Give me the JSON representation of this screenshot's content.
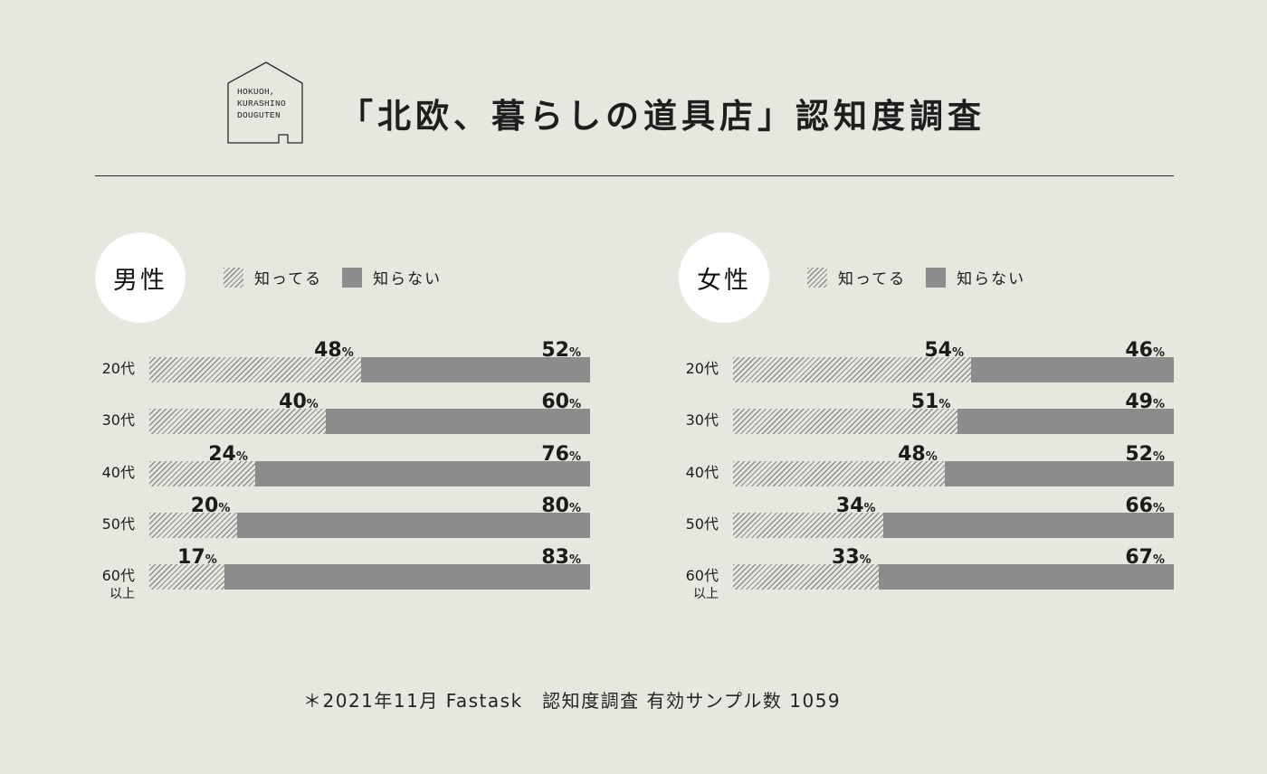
{
  "logo": {
    "text": "HOKUOH,\nKURASHINO\nDOUGUTEN"
  },
  "title": "「北欧、暮らしの道具店」認知度調査",
  "legend": {
    "known": "知ってる",
    "unknown": "知らない"
  },
  "percent_sign": "%",
  "footnote": "＊2021年11月 Fastask　認知度調査 有効サンプル数 1059",
  "colors": {
    "background": "#e7e6df",
    "unknown_bar": "#8c8c8c",
    "known_hatch": "#8f8f8f",
    "circle": "#ffffff"
  },
  "chart_data": [
    {
      "type": "bar",
      "stacked": true,
      "orientation": "horizontal",
      "title": "男性",
      "categories": [
        "20代",
        "30代",
        "40代",
        "50代",
        "60代以上"
      ],
      "category_display": [
        [
          "20代",
          ""
        ],
        [
          "30代",
          ""
        ],
        [
          "40代",
          ""
        ],
        [
          "50代",
          ""
        ],
        [
          "60代",
          "以上"
        ]
      ],
      "series": [
        {
          "name": "知ってる",
          "values": [
            48,
            40,
            24,
            20,
            17
          ]
        },
        {
          "name": "知らない",
          "values": [
            52,
            60,
            76,
            80,
            83
          ]
        }
      ],
      "xlim": [
        0,
        100
      ],
      "legend": "top"
    },
    {
      "type": "bar",
      "stacked": true,
      "orientation": "horizontal",
      "title": "女性",
      "categories": [
        "20代",
        "30代",
        "40代",
        "50代",
        "60代以上"
      ],
      "category_display": [
        [
          "20代",
          ""
        ],
        [
          "30代",
          ""
        ],
        [
          "40代",
          ""
        ],
        [
          "50代",
          ""
        ],
        [
          "60代",
          "以上"
        ]
      ],
      "series": [
        {
          "name": "知ってる",
          "values": [
            54,
            51,
            48,
            34,
            33
          ]
        },
        {
          "name": "知らない",
          "values": [
            46,
            49,
            52,
            66,
            67
          ]
        }
      ],
      "xlim": [
        0,
        100
      ],
      "legend": "top"
    }
  ]
}
